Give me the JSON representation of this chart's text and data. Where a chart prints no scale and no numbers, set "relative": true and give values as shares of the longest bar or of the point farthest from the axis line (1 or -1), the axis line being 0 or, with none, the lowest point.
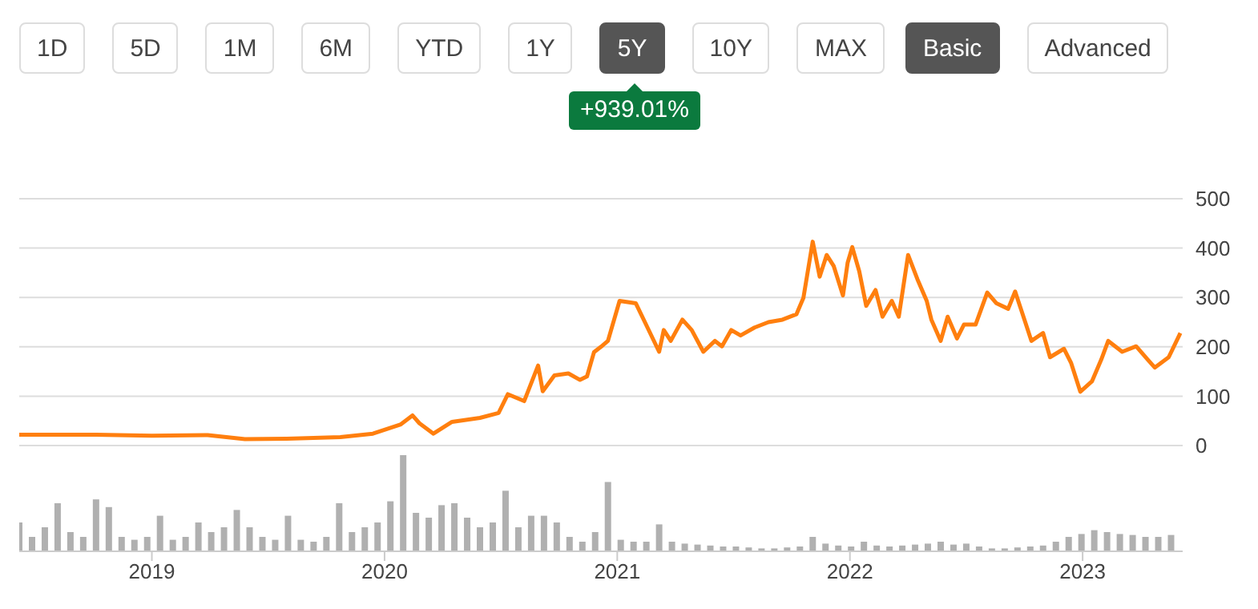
{
  "chart_data": [
    {
      "type": "other",
      "annotations": [
        "1D",
        "5D",
        "1M",
        "6M",
        "YTD",
        "1Y",
        "5Y",
        "10Y",
        "MAX",
        "Basic",
        "Advanced",
        "+939.01%"
      ]
    },
    {
      "type": "line",
      "x": [
        2018.43,
        2018.76,
        2019.0,
        2019.24,
        2019.4,
        2019.58,
        2019.81,
        2019.95,
        2020.07,
        2020.12,
        2020.15,
        2020.21,
        2020.29,
        2020.41,
        2020.49,
        2020.53,
        2020.6,
        2020.66,
        2020.68,
        2020.73,
        2020.79,
        2020.84,
        2020.87,
        2020.9,
        2020.93,
        2020.96,
        2021.01,
        2021.08,
        2021.13,
        2021.18,
        2021.2,
        2021.23,
        2021.28,
        2021.32,
        2021.37,
        2021.42,
        2021.45,
        2021.49,
        2021.53,
        2021.59,
        2021.65,
        2021.71,
        2021.77,
        2021.8,
        2021.84,
        2021.87,
        2021.9,
        2021.93,
        2021.97,
        2021.99,
        2022.01,
        2022.04,
        2022.07,
        2022.11,
        2022.14,
        2022.18,
        2022.21,
        2022.25,
        2022.29,
        2022.33,
        2022.35,
        2022.39,
        2022.42,
        2022.46,
        2022.49,
        2022.54,
        2022.59,
        2022.63,
        2022.68,
        2022.71,
        2022.75,
        2022.78,
        2022.83,
        2022.86,
        2022.92,
        2022.95,
        2022.99,
        2023.04,
        2023.08,
        2023.11,
        2023.17,
        2023.23,
        2023.28,
        2023.31,
        2023.37,
        2023.42
      ],
      "series": [
        {
          "color": "#ff7f0e",
          "values": [
            22,
            22,
            20,
            21,
            13,
            14,
            17,
            24,
            43,
            61,
            45,
            24,
            48,
            56,
            66,
            104,
            90,
            162,
            110,
            142,
            146,
            133,
            140,
            189,
            200,
            212,
            293,
            288,
            239,
            190,
            234,
            212,
            255,
            234,
            190,
            212,
            201,
            234,
            223,
            239,
            250,
            255,
            266,
            299,
            413,
            342,
            386,
            364,
            304,
            370,
            402,
            353,
            283,
            315,
            261,
            293,
            261,
            386,
            337,
            293,
            255,
            212,
            261,
            217,
            245,
            245,
            310,
            288,
            277,
            312,
            255,
            212,
            228,
            179,
            196,
            168,
            109,
            130,
            174,
            212,
            190,
            201,
            174,
            158,
            179,
            228
          ]
        }
      ],
      "xlim": [
        2018.43,
        2023.43
      ],
      "ylim": [
        0,
        500
      ],
      "yticks": [
        0,
        100,
        200,
        300,
        400,
        500
      ],
      "grid": "y",
      "tick_labels": "y"
    },
    {
      "type": "bar",
      "relative": true,
      "color": "#b0b0b0",
      "xlim": [
        2018.43,
        2023.43
      ],
      "xticks": [
        2019,
        2020,
        2021,
        2022,
        2023
      ],
      "tick_labels": "x",
      "x": [
        2018.43,
        2018.485,
        2018.54,
        2018.595,
        2018.65,
        2018.705,
        2018.76,
        2018.815,
        2018.87,
        2018.925,
        2018.98,
        2019.035,
        2019.09,
        2019.145,
        2019.2,
        2019.255,
        2019.31,
        2019.365,
        2019.42,
        2019.475,
        2019.53,
        2019.585,
        2019.64,
        2019.695,
        2019.75,
        2019.805,
        2019.86,
        2019.915,
        2019.97,
        2020.025,
        2020.08,
        2020.135,
        2020.19,
        2020.245,
        2020.3,
        2020.355,
        2020.41,
        2020.465,
        2020.52,
        2020.575,
        2020.63,
        2020.685,
        2020.74,
        2020.795,
        2020.85,
        2020.905,
        2020.96,
        2021.015,
        2021.07,
        2021.125,
        2021.18,
        2021.235,
        2021.29,
        2021.345,
        2021.4,
        2021.455,
        2021.51,
        2021.565,
        2021.62,
        2021.675,
        2021.73,
        2021.785,
        2021.84,
        2021.895,
        2021.95,
        2022.005,
        2022.06,
        2022.115,
        2022.17,
        2022.225,
        2022.28,
        2022.335,
        2022.39,
        2022.445,
        2022.5,
        2022.555,
        2022.61,
        2022.665,
        2022.72,
        2022.775,
        2022.83,
        2022.885,
        2022.94,
        2022.995,
        2023.05,
        2023.105,
        2023.16,
        2023.215,
        2023.27,
        2023.325,
        2023.38
      ],
      "values": [
        0.3,
        0.15,
        0.25,
        0.5,
        0.2,
        0.15,
        0.54,
        0.46,
        0.15,
        0.12,
        0.15,
        0.37,
        0.12,
        0.15,
        0.3,
        0.2,
        0.25,
        0.43,
        0.25,
        0.15,
        0.12,
        0.37,
        0.12,
        0.1,
        0.15,
        0.5,
        0.2,
        0.25,
        0.3,
        0.52,
        1,
        0.4,
        0.35,
        0.48,
        0.5,
        0.35,
        0.25,
        0.3,
        0.63,
        0.25,
        0.37,
        0.37,
        0.3,
        0.15,
        0.1,
        0.2,
        0.72,
        0.12,
        0.1,
        0.1,
        0.28,
        0.1,
        0.08,
        0.07,
        0.06,
        0.05,
        0.05,
        0.04,
        0.03,
        0.03,
        0.04,
        0.05,
        0.15,
        0.08,
        0.06,
        0.05,
        0.1,
        0.06,
        0.05,
        0.06,
        0.07,
        0.08,
        0.1,
        0.07,
        0.08,
        0.05,
        0.03,
        0.03,
        0.04,
        0.05,
        0.06,
        0.1,
        0.15,
        0.18,
        0.22,
        0.2,
        0.18,
        0.17,
        0.15,
        0.15,
        0.17
      ]
    }
  ]
}
